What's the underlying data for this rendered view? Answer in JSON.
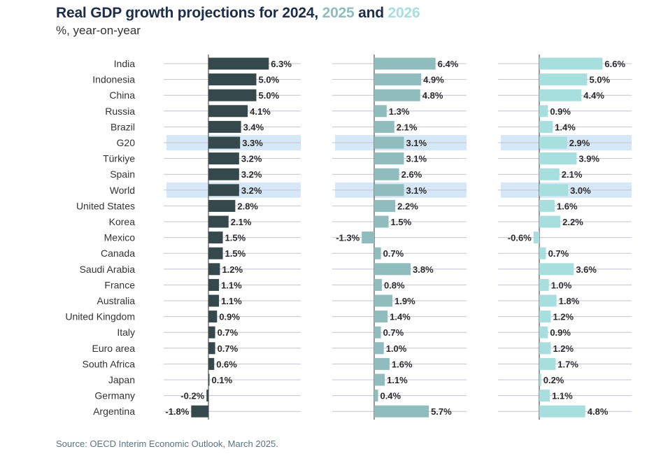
{
  "title": {
    "prefix": "Real GDP growth projections for 2024, ",
    "y2025": "2025",
    "and": " and ",
    "y2026": "2026"
  },
  "subtitle": "%, year-on-year",
  "source": "Source: OECD Interim Economic Outlook, March 2025.",
  "chart_data": {
    "type": "bar",
    "orientation": "horizontal",
    "unit": "%",
    "categories": [
      "India",
      "Indonesia",
      "China",
      "Russia",
      "Brazil",
      "G20",
      "Türkiye",
      "Spain",
      "World",
      "United States",
      "Korea",
      "Mexico",
      "Canada",
      "Saudi Arabia",
      "France",
      "Australia",
      "United Kingdom",
      "Italy",
      "Euro area",
      "South Africa",
      "Japan",
      "Germany",
      "Argentina"
    ],
    "highlighted_categories": [
      "G20",
      "World"
    ],
    "series": [
      {
        "name": "2024",
        "color": "#35494c",
        "values": [
          6.3,
          5.0,
          5.0,
          4.1,
          3.4,
          3.3,
          3.2,
          3.2,
          3.2,
          2.8,
          2.1,
          1.5,
          1.5,
          1.2,
          1.1,
          1.1,
          0.9,
          0.7,
          0.7,
          0.6,
          0.1,
          -0.2,
          -1.8
        ]
      },
      {
        "name": "2025",
        "color": "#8fbcbc",
        "values": [
          6.4,
          4.9,
          4.8,
          1.3,
          2.1,
          3.1,
          3.1,
          2.6,
          3.1,
          2.2,
          1.5,
          -1.3,
          0.7,
          3.8,
          0.8,
          1.9,
          1.4,
          0.7,
          1.0,
          1.6,
          1.1,
          0.4,
          5.7
        ]
      },
      {
        "name": "2026",
        "color": "#a7dede",
        "values": [
          6.6,
          5.0,
          4.4,
          0.9,
          1.4,
          2.9,
          3.9,
          2.1,
          3.0,
          1.6,
          2.2,
          -0.6,
          0.7,
          3.6,
          1.0,
          1.8,
          1.2,
          0.9,
          1.2,
          1.7,
          0.2,
          1.1,
          4.8
        ]
      }
    ],
    "highlight_color": "#d6e8f7",
    "gridline_color": "#c3c3d3",
    "axis_color": "#555555"
  }
}
